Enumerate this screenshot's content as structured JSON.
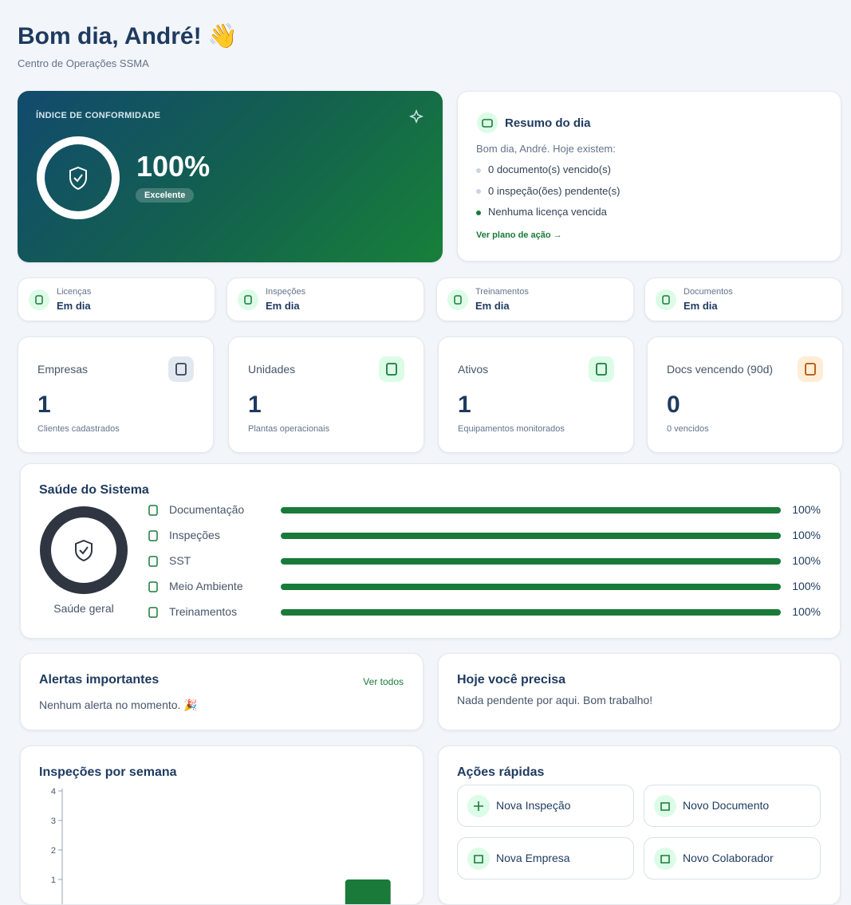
{
  "header": {
    "title": "Bom dia, André! 👋",
    "subtitle": "Centro de Operações SSMA"
  },
  "compliance": {
    "label": "ÍNDICE DE CONFORMIDADE",
    "value": 100,
    "value_label": "100%",
    "rating": "Excelente"
  },
  "summary": {
    "title": "Resumo do dia",
    "intro": "Bom dia, André. Hoje existem:",
    "items": [
      "0 documento(s) vencido(s)",
      "0 inspeção(ões) pendente(s)",
      "Nenhuma licença vencida"
    ],
    "link": "Ver plano de ação →"
  },
  "status": [
    {
      "label": "Licenças",
      "value": "Em dia"
    },
    {
      "label": "Inspeções",
      "value": "Em dia"
    },
    {
      "label": "Treinamentos",
      "value": "Em dia"
    },
    {
      "label": "Documentos",
      "value": "Em dia"
    }
  ],
  "stats": [
    {
      "label": "Empresas",
      "value": 1,
      "note": "Clientes cadastrados"
    },
    {
      "label": "Unidades",
      "value": 1,
      "note": "Plantas operacionais"
    },
    {
      "label": "Ativos",
      "value": 1,
      "note": "Equipamentos monitorados"
    },
    {
      "label": "Docs vencendo (90d)",
      "value": 0,
      "note": "0 vencidos"
    }
  ],
  "health": {
    "title": "Saúde do Sistema",
    "overall": "Saúde geral",
    "items": [
      {
        "name": "Documentação",
        "value": 100,
        "value_label": "100%"
      },
      {
        "name": "Inspeções",
        "value": 100,
        "value_label": "100%"
      },
      {
        "name": "SST",
        "value": 100,
        "value_label": "100%"
      },
      {
        "name": "Meio Ambiente",
        "value": 100,
        "value_label": "100%"
      },
      {
        "name": "Treinamentos",
        "value": 100,
        "value_label": "100%"
      }
    ]
  },
  "alerts": {
    "title": "Alertas importantes",
    "link": "Ver todos",
    "message": "Nenhum alerta no momento. 🎉"
  },
  "today": {
    "title": "Hoje você precisa",
    "message": "Nada pendente por aqui. Bom trabalho!"
  },
  "chart_data": {
    "type": "bar",
    "title": "Inspeções por semana",
    "categories": [
      null,
      null,
      null,
      null
    ],
    "values": [
      0,
      0,
      0,
      1
    ],
    "color": "#1a7a3a",
    "ylim": [
      0,
      4
    ],
    "yticks": [
      1,
      2,
      3,
      4
    ]
  },
  "quick_actions": {
    "title": "Ações rápidas",
    "items": [
      "Nova Inspeção",
      "Novo Documento",
      "Nova Empresa",
      "Novo Colaborador"
    ]
  }
}
